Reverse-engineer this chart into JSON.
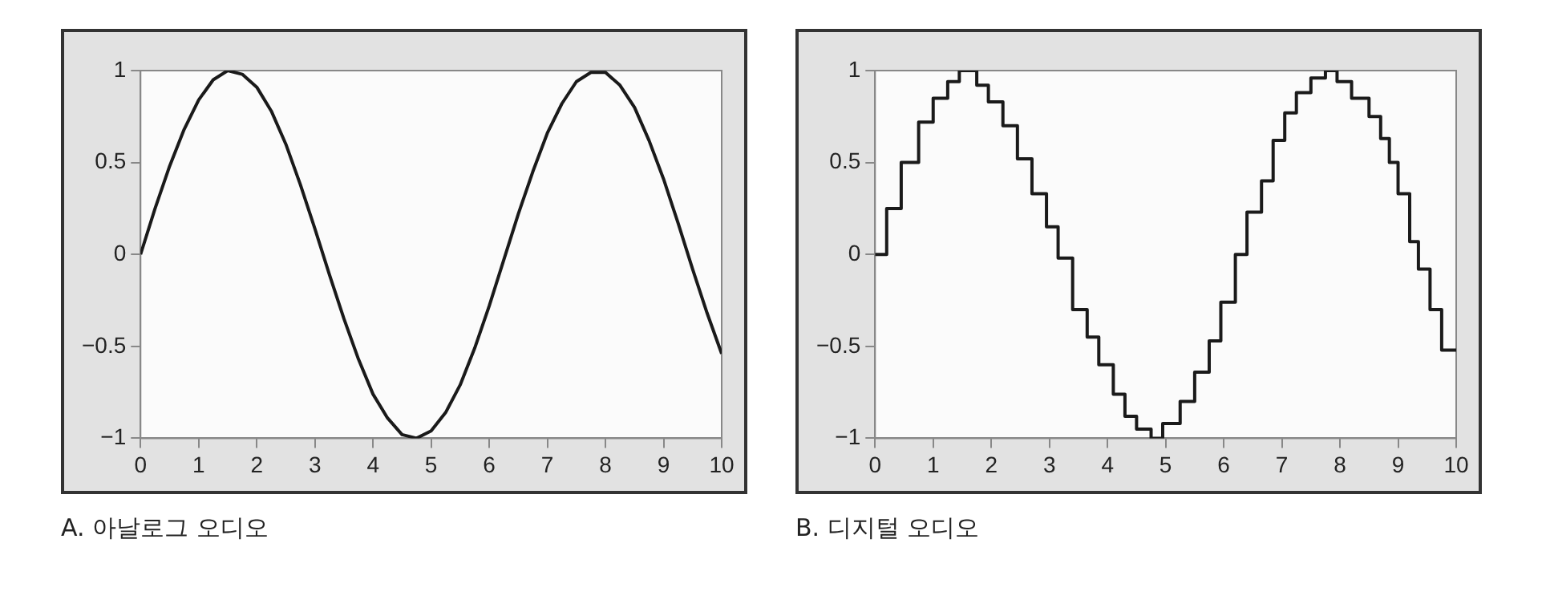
{
  "chart_data": [
    {
      "type": "line",
      "title": "A. 아날로그 오디오",
      "x": [
        0,
        0.25,
        0.5,
        0.75,
        1,
        1.25,
        1.5,
        1.75,
        2,
        2.25,
        2.5,
        2.75,
        3,
        3.25,
        3.5,
        3.75,
        4,
        4.25,
        4.5,
        4.75,
        5,
        5.25,
        5.5,
        5.75,
        6,
        6.25,
        6.5,
        6.75,
        7,
        7.25,
        7.5,
        7.75,
        8,
        8.25,
        8.5,
        8.75,
        9,
        9.25,
        9.5,
        9.75,
        10
      ],
      "series": [
        {
          "color": "#1a1a1a",
          "values": [
            0,
            0.25,
            0.48,
            0.68,
            0.84,
            0.95,
            1.0,
            0.98,
            0.91,
            0.78,
            0.6,
            0.38,
            0.14,
            -0.11,
            -0.35,
            -0.57,
            -0.76,
            -0.89,
            -0.98,
            -1.0,
            -0.96,
            -0.86,
            -0.71,
            -0.51,
            -0.28,
            -0.03,
            0.22,
            0.45,
            0.66,
            0.82,
            0.94,
            0.99,
            0.99,
            0.92,
            0.8,
            0.62,
            0.41,
            0.17,
            -0.08,
            -0.32,
            -0.54
          ]
        }
      ],
      "xlim": [
        0,
        10
      ],
      "xticks": [
        0,
        1,
        2,
        3,
        4,
        5,
        6,
        7,
        8,
        9,
        10
      ],
      "ylim": [
        -1,
        1
      ],
      "yticks": [
        -1,
        -0.5,
        0,
        0.5,
        1
      ],
      "grid": false,
      "legend": false,
      "marker": "none",
      "line_style": "solid"
    },
    {
      "type": "step",
      "title": "B. 디지털 오디오",
      "x": [
        0,
        0.2,
        0.45,
        0.75,
        1,
        1.25,
        1.45,
        1.75,
        1.95,
        2.2,
        2.45,
        2.7,
        2.95,
        3.15,
        3.4,
        3.65,
        3.85,
        4.1,
        4.3,
        4.5,
        4.75,
        4.95,
        5.25,
        5.5,
        5.75,
        5.95,
        6.2,
        6.4,
        6.65,
        6.85,
        7.05,
        7.25,
        7.5,
        7.75,
        7.95,
        8.2,
        8.5,
        8.7,
        8.85,
        9.0,
        9.2,
        9.35,
        9.55,
        9.75,
        10
      ],
      "series": [
        {
          "color": "#1a1a1a",
          "values": [
            0,
            0.25,
            0.5,
            0.72,
            0.85,
            0.94,
            1.0,
            0.92,
            0.83,
            0.7,
            0.52,
            0.33,
            0.15,
            -0.02,
            -0.3,
            -0.45,
            -0.6,
            -0.76,
            -0.88,
            -0.95,
            -1.0,
            -0.92,
            -0.8,
            -0.64,
            -0.47,
            -0.26,
            0.0,
            0.23,
            0.4,
            0.62,
            0.77,
            0.88,
            0.96,
            1.0,
            0.94,
            0.85,
            0.75,
            0.63,
            0.5,
            0.33,
            0.07,
            -0.08,
            -0.3,
            -0.52,
            -0.52
          ]
        }
      ],
      "xlim": [
        0,
        10
      ],
      "xticks": [
        0,
        1,
        2,
        3,
        4,
        5,
        6,
        7,
        8,
        9,
        10
      ],
      "ylim": [
        -1,
        1
      ],
      "yticks": [
        -1,
        -0.5,
        0,
        0.5,
        1
      ],
      "grid": false,
      "legend": false,
      "marker": "none",
      "line_style": "solid"
    }
  ]
}
